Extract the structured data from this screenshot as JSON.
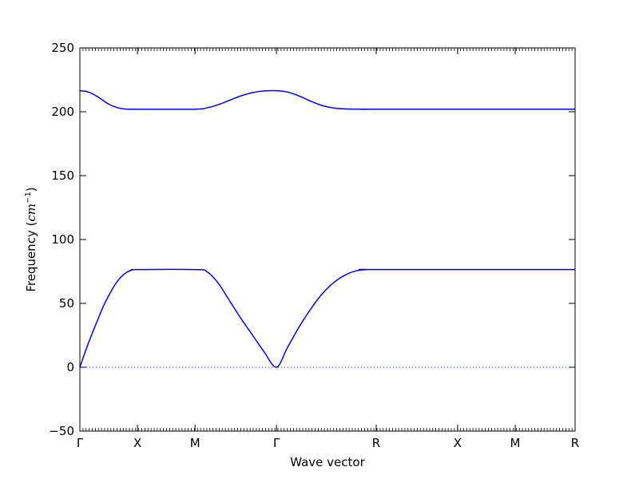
{
  "chart_data": {
    "type": "line",
    "title": "",
    "xlabel": "Wave vector",
    "ylabel_prefix": "Frequency (",
    "ylabel_unit_base": "cm",
    "ylabel_unit_exp": "−1",
    "ylabel_suffix": ")",
    "ylim": [
      -50,
      250
    ],
    "yticks": [
      -50,
      0,
      50,
      100,
      150,
      200,
      250
    ],
    "ytick_labels": [
      "−50",
      "0",
      "50",
      "100",
      "150",
      "200",
      "250"
    ],
    "xlim": [
      0,
      4.3
    ],
    "high_symmetry_points": [
      {
        "label": "Γ",
        "x": 0
      },
      {
        "label": "X",
        "x": 0.5
      },
      {
        "label": "M",
        "x": 1.0
      },
      {
        "label": "Γ",
        "x": 1.707
      },
      {
        "label": "R",
        "x": 2.573
      },
      {
        "label": "X",
        "x": 3.28
      },
      {
        "label": "M",
        "x": 3.78
      },
      {
        "label": "R",
        "x": 4.3
      }
    ],
    "zero_line": true,
    "line_color": "#0000ff",
    "zero_line_color": "#0000ff",
    "series": [
      {
        "x": [
          0,
          0.05,
          0.1,
          0.15,
          0.2,
          0.25,
          0.3,
          0.35,
          0.4,
          0.45,
          0.5,
          1.0,
          1.1,
          1.2,
          1.3,
          1.4,
          1.5,
          1.6,
          1.707,
          1.8,
          1.9,
          2.0,
          2.1,
          2.2,
          2.3,
          2.4,
          2.5,
          2.573,
          4.3
        ],
        "y": [
          0,
          13,
          25,
          36,
          47,
          56,
          64,
          70,
          74,
          76,
          76.5,
          76.5,
          75,
          66,
          52,
          38,
          25,
          12,
          0,
          15,
          31,
          45,
          57,
          66,
          72,
          75.5,
          76.5,
          76.5,
          76.5
        ]
      },
      {
        "x": [
          0,
          0.05,
          0.1,
          0.15,
          0.2,
          0.25,
          0.3,
          0.35,
          0.4,
          0.45,
          0.5,
          1.0,
          1.1,
          1.2,
          1.3,
          1.4,
          1.5,
          1.6,
          1.707,
          1.8,
          1.9,
          2.0,
          2.1,
          2.2,
          2.3,
          2.4,
          2.5,
          2.573,
          4.3
        ],
        "y": [
          216.5,
          216,
          214.5,
          212,
          209,
          206,
          204,
          202.7,
          202.1,
          202,
          202,
          202,
          203,
          205.5,
          209,
          212.5,
          215,
          216.3,
          216.5,
          215.5,
          212.5,
          208.5,
          205,
          203,
          202.3,
          202.1,
          202,
          202,
          202
        ]
      }
    ]
  }
}
